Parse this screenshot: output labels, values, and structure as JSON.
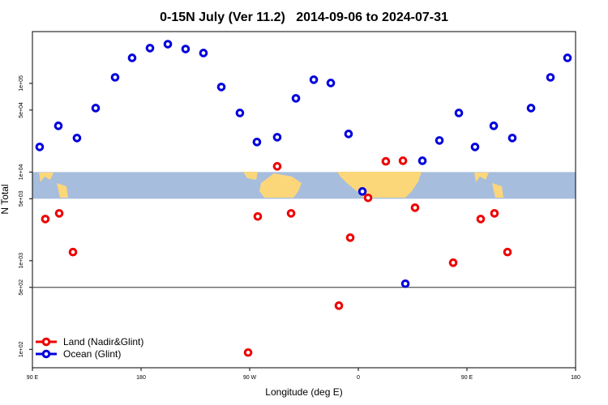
{
  "chart_data": {
    "type": "scatter",
    "title": "0-15N July (Ver 11.2)   2014-09-06 to 2024-07-31",
    "x_label": "Longitude (deg E)",
    "y_label": "N Total",
    "xlim": [
      90,
      540
    ],
    "xticks": [
      {
        "value": 90,
        "label": "90 E"
      },
      180,
      {
        "value": 270,
        "label": "90 W"
      },
      {
        "value": 360,
        "label": "0"
      },
      {
        "value": 450,
        "label": "90 E"
      },
      {
        "value": 540,
        "label": "180"
      }
    ],
    "ylim": [
      62,
      384000
    ],
    "log_y": true,
    "yticks": [
      {
        "value": 100,
        "label": "1e+02"
      },
      {
        "value": 500,
        "label": "5e+02"
      },
      {
        "value": 1000,
        "label": "1e+03"
      },
      {
        "value": 5000,
        "label": "5e+03"
      },
      {
        "value": 10000,
        "label": "1e+04"
      },
      {
        "value": 50000,
        "label": "5e+04"
      },
      {
        "value": 100000,
        "label": "1e+05"
      }
    ],
    "hline": 500,
    "map_band": [
      5000,
      10000
    ],
    "legend_position": "bottom-left",
    "series": [
      {
        "name": "Land (Nadir&Glint)",
        "color": "#ee0000",
        "x": [
          100.7,
          112.2,
          123.6,
          268.7,
          276.7,
          292.8,
          304.3,
          343.9,
          353.3,
          368.1,
          382.8,
          397.0,
          407.0,
          438.6,
          461.4,
          472.8,
          483.6
        ],
        "values": [
          2950,
          3420,
          1250,
          92,
          3150,
          11600,
          3420,
          311,
          1820,
          5110,
          13200,
          13400,
          3960,
          949,
          2950,
          3420,
          1250
        ]
      },
      {
        "name": "Ocean (Glint)",
        "color": "#0000dd",
        "x": [
          96.0,
          111.5,
          126.9,
          142.4,
          158.5,
          172.6,
          187.4,
          202.2,
          216.9,
          231.7,
          246.5,
          261.9,
          276.0,
          292.8,
          308.3,
          323.1,
          337.2,
          351.9,
          363.4,
          399.0,
          413.1,
          427.2,
          443.3,
          456.7,
          472.2,
          487.6,
          503.1,
          519.2,
          533.3
        ],
        "values": [
          19200,
          33200,
          24200,
          52600,
          117000,
          194000,
          250000,
          277000,
          244000,
          220000,
          91000,
          46400,
          21800,
          24700,
          67800,
          110000,
          101000,
          26900,
          6040,
          550,
          13400,
          22700,
          46400,
          19200,
          33200,
          24200,
          52600,
          117000,
          194000
        ]
      }
    ]
  }
}
